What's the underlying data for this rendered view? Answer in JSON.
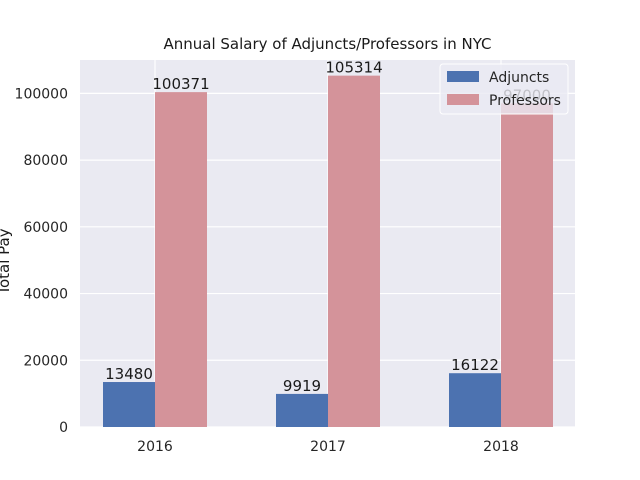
{
  "chart_data": {
    "type": "bar",
    "title": "Annual Salary of Adjuncts/Professors in NYC",
    "xlabel": "",
    "ylabel": "Total Pay",
    "categories": [
      "2016",
      "2017",
      "2018"
    ],
    "series": [
      {
        "name": "Adjuncts",
        "values": [
          13480,
          9919,
          16122
        ],
        "color": "#4c72b0"
      },
      {
        "name": "Professors",
        "values": [
          100371,
          105314,
          97000
        ],
        "color": "#d4939a"
      }
    ],
    "data_labels": {
      "Adjuncts": [
        "13480",
        "9919",
        "16122"
      ],
      "Professors": [
        "100371",
        "105314",
        "97000"
      ]
    },
    "ylim": [
      0,
      110000
    ],
    "yticks": [
      0,
      20000,
      40000,
      60000,
      80000,
      100000
    ],
    "grid": true,
    "legend_position": "top-right",
    "colors": {
      "background": "#eaeaf2",
      "grid": "#ffffff"
    }
  }
}
